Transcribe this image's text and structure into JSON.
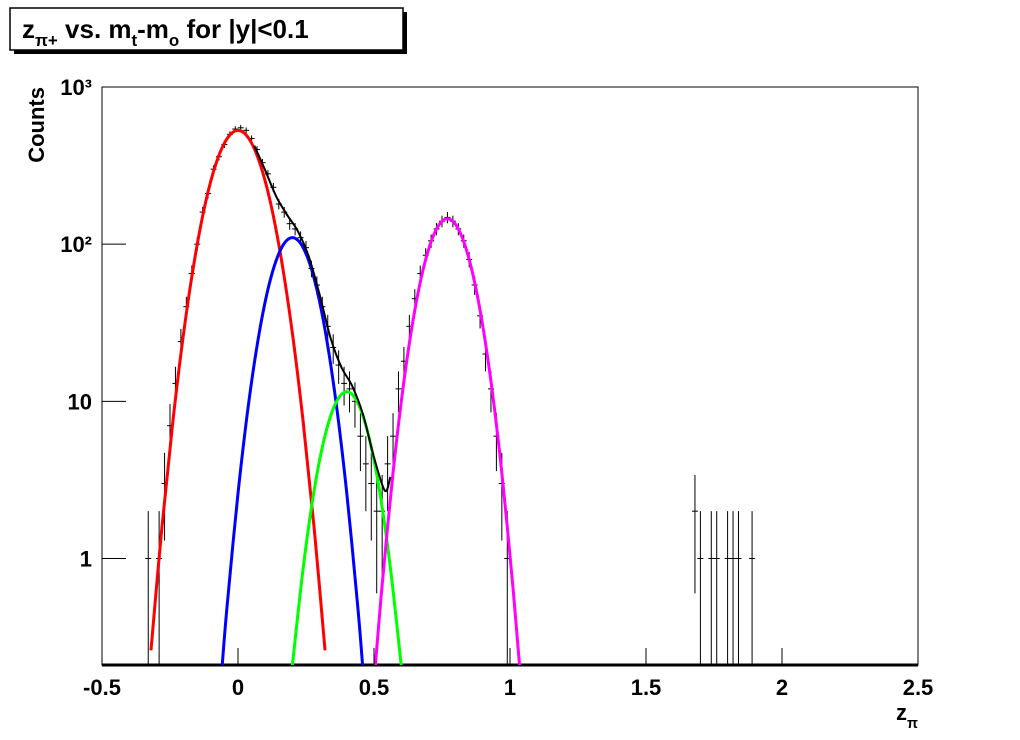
{
  "chart_data": {
    "type": "errorbar",
    "title": [
      {
        "text": "z"
      },
      {
        "text": "π+",
        "sub": true
      },
      {
        "text": " vs. m"
      },
      {
        "text": "t",
        "sub": true
      },
      {
        "text": "-m"
      },
      {
        "text": "o",
        "sub": true
      },
      {
        "text": " for |y|<0.1"
      }
    ],
    "x_label": [
      {
        "text": "z"
      },
      {
        "text": "π",
        "sub": true
      }
    ],
    "y_label": "Counts",
    "log_y": true,
    "xlim": [
      -0.5,
      2.5
    ],
    "ylim": [
      0.21,
      1000
    ],
    "xticks": [
      -0.5,
      0,
      0.5,
      1,
      1.5,
      2,
      2.5
    ],
    "yticks": [
      1,
      10,
      {
        "value": 100,
        "label": "10²"
      },
      {
        "value": 1000,
        "label": "10³"
      }
    ],
    "data_points": {
      "color": "#000000",
      "x": [
        -0.33,
        -0.29,
        -0.27,
        -0.25,
        -0.23,
        -0.21,
        -0.19,
        -0.17,
        -0.15,
        -0.13,
        -0.11,
        -0.09,
        -0.07,
        -0.05,
        -0.03,
        -0.01,
        0.01,
        0.03,
        0.05,
        0.07,
        0.09,
        0.11,
        0.13,
        0.15,
        0.17,
        0.19,
        0.21,
        0.23,
        0.25,
        0.27,
        0.29,
        0.31,
        0.33,
        0.35,
        0.37,
        0.39,
        0.41,
        0.43,
        0.45,
        0.47,
        0.49,
        0.51,
        0.53,
        0.55,
        0.57,
        0.59,
        0.61,
        0.63,
        0.65,
        0.67,
        0.69,
        0.71,
        0.73,
        0.75,
        0.77,
        0.79,
        0.81,
        0.83,
        0.85,
        0.87,
        0.89,
        0.91,
        0.93,
        0.95,
        0.97,
        0.99,
        1.68,
        1.7,
        1.74,
        1.76,
        1.8,
        1.82,
        1.84,
        1.89
      ],
      "values": [
        1,
        1,
        3,
        7,
        13,
        24,
        40,
        65,
        100,
        160,
        210,
        300,
        360,
        430,
        500,
        540,
        550,
        530,
        470,
        400,
        330,
        280,
        230,
        180,
        160,
        135,
        125,
        110,
        95,
        70,
        55,
        40,
        30,
        22,
        17,
        13,
        12,
        10,
        6,
        4,
        3,
        2,
        2,
        4,
        6,
        12,
        18,
        30,
        45,
        65,
        85,
        105,
        125,
        140,
        148,
        140,
        125,
        105,
        80,
        55,
        35,
        20,
        12,
        6,
        3,
        1,
        2,
        1,
        1,
        1,
        1,
        1,
        1,
        1
      ],
      "errors": [
        1,
        1,
        1.7,
        2.6,
        3.6,
        4.9,
        6.3,
        8.1,
        10,
        12.6,
        14.5,
        17.3,
        19,
        20.7,
        22.4,
        23.2,
        23.5,
        23,
        21.7,
        20,
        18.2,
        16.7,
        15.2,
        13.4,
        12.6,
        11.6,
        11.2,
        10.5,
        9.7,
        8.4,
        7.4,
        6.3,
        5.5,
        4.7,
        4.1,
        3.6,
        3.5,
        3.2,
        2.4,
        2,
        1.7,
        1.4,
        1.4,
        2,
        2.4,
        3.5,
        4.2,
        5.5,
        6.7,
        8.1,
        9.2,
        10.2,
        11.2,
        11.8,
        12.2,
        11.8,
        11.2,
        10.2,
        8.9,
        7.4,
        5.9,
        4.5,
        3.5,
        2.4,
        1.7,
        1,
        1.4,
        1,
        1,
        1,
        1,
        1,
        1,
        1
      ]
    },
    "curves": [
      {
        "color": "#ff0000",
        "width": 3,
        "x": [
          -0.32,
          -0.28,
          -0.24,
          -0.2,
          -0.16,
          -0.12,
          -0.08,
          -0.04,
          0,
          0.04,
          0.08,
          0.12,
          0.16,
          0.2,
          0.24,
          0.28,
          0.32
        ],
        "values": [
          0.26,
          1.56,
          7.3,
          27.1,
          79,
          182,
          329,
          470,
          530,
          470,
          329,
          182,
          79,
          27.1,
          7.3,
          1.56,
          0.26
        ]
      },
      {
        "color": "#0000ff",
        "width": 3,
        "x": [
          -0.058,
          -0.04,
          0,
          0.04,
          0.08,
          0.12,
          0.16,
          0.2,
          0.24,
          0.28,
          0.32,
          0.36,
          0.4,
          0.44,
          0.458
        ],
        "values": [
          0.21,
          0.5,
          2.59,
          9.98,
          28.5,
          60.4,
          94.7,
          110,
          94.7,
          60.4,
          28.5,
          9.98,
          2.59,
          0.5,
          0.21
        ]
      },
      {
        "color": "#00ff00",
        "width": 3,
        "x": [
          0.2,
          0.24,
          0.28,
          0.32,
          0.36,
          0.4,
          0.44,
          0.48,
          0.52,
          0.56,
          0.6
        ],
        "values": [
          0.21,
          0.88,
          2.72,
          6.06,
          9.8,
          11.5,
          9.8,
          6.06,
          2.72,
          0.88,
          0.21
        ]
      },
      {
        "color": "#ff00ff",
        "width": 3,
        "x": [
          0.505,
          0.53,
          0.57,
          0.61,
          0.65,
          0.69,
          0.73,
          0.77,
          0.81,
          0.85,
          0.89,
          0.93,
          0.97,
          1.01,
          1.035
        ],
        "values": [
          0.21,
          0.68,
          3.51,
          13.4,
          38,
          79.9,
          125,
          145,
          125,
          79.9,
          38,
          13.4,
          3.51,
          0.68,
          0.21
        ]
      },
      {
        "color": "#000000",
        "width": 2,
        "x": [
          0.06,
          0.1,
          0.14,
          0.18,
          0.22,
          0.26,
          0.3,
          0.34,
          0.38,
          0.42,
          0.46,
          0.5,
          0.54,
          0.56
        ],
        "values": [
          423,
          295,
          202,
          154,
          121,
          83.5,
          47.8,
          25.4,
          16.5,
          12.5,
          8.2,
          4.4,
          2.7,
          3.3
        ]
      }
    ]
  }
}
